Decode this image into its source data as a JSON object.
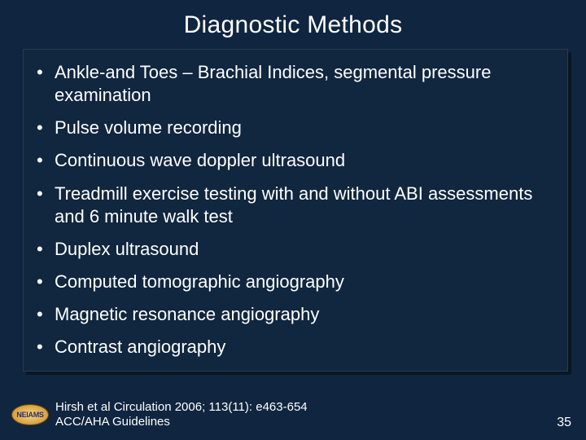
{
  "slide": {
    "title": "Diagnostic Methods",
    "bullets": [
      "Ankle-and Toes – Brachial Indices, segmental pressure examination",
      "Pulse volume recording",
      "Continuous wave doppler ultrasound",
      "Treadmill exercise testing with and without ABI assessments and 6 minute  walk test",
      "Duplex ultrasound",
      "Computed tomographic angiography",
      "Magnetic resonance angiography",
      "Contrast angiography"
    ],
    "footer_line1": "Hirsh et al Circulation 2006; 113(11): e463-654",
    "footer_line2": "ACC/AHA Guidelines",
    "page_number": "35",
    "logo_text": "NEIAMS"
  },
  "style": {
    "background_color": "#10253f",
    "text_color": "#ffffff",
    "title_fontsize": 30,
    "bullet_fontsize": 22,
    "footer_fontsize": 15,
    "pagenum_fontsize": 16,
    "box_border_color": "#2a3a4e",
    "box_shadow_color": "#0a1624",
    "logo_gradient": [
      "#f6d788",
      "#d9a441",
      "#b07a20"
    ],
    "logo_text_color": "#2a2a6a"
  }
}
